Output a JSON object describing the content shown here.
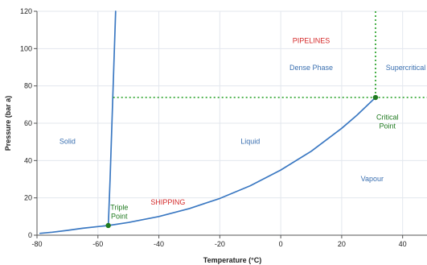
{
  "chart_data": {
    "type": "line",
    "title": "",
    "xlabel": "Temperature (°C)",
    "ylabel": "Pressure (bar a)",
    "xlim": [
      -80,
      48
    ],
    "ylim": [
      0,
      120
    ],
    "x_ticks": [
      -80,
      -60,
      -40,
      -20,
      0,
      20,
      40
    ],
    "y_ticks": [
      0,
      20,
      40,
      60,
      80,
      100,
      120
    ],
    "x_tick_labels": [
      "-80",
      "-60",
      "-40",
      "-20",
      "0",
      "20",
      "40"
    ],
    "y_tick_labels": [
      "0",
      "20",
      "40",
      "60",
      "80",
      "100",
      "120"
    ],
    "grid": true,
    "series": [
      {
        "role": "sublimation-and-vapour-pressure-curve",
        "style": "solid",
        "color": "#3a78c2",
        "points": [
          [
            -79,
            1.0
          ],
          [
            -75,
            1.6
          ],
          [
            -70,
            2.6
          ],
          [
            -65,
            3.7
          ],
          [
            -60,
            4.6
          ],
          [
            -56.6,
            5.2
          ],
          [
            -50,
            6.8
          ],
          [
            -40,
            10.0
          ],
          [
            -30,
            14.3
          ],
          [
            -20,
            19.7
          ],
          [
            -10,
            26.5
          ],
          [
            0,
            34.9
          ],
          [
            10,
            45.0
          ],
          [
            20,
            57.3
          ],
          [
            25,
            64.3
          ],
          [
            31.1,
            73.8
          ]
        ]
      },
      {
        "role": "melting-curve",
        "style": "solid",
        "color": "#3a78c2",
        "points": [
          [
            -56.6,
            5.2
          ],
          [
            -56.0,
            30
          ],
          [
            -55.4,
            60
          ],
          [
            -54.8,
            90
          ],
          [
            -54.2,
            120
          ]
        ]
      },
      {
        "role": "critical-pressure-line",
        "style": "dotted",
        "color": "#1f9e1f",
        "points": [
          [
            -55,
            73.8
          ],
          [
            48,
            73.8
          ]
        ]
      },
      {
        "role": "critical-temperature-line",
        "style": "dotted",
        "color": "#1f9e1f",
        "points": [
          [
            31.1,
            73.8
          ],
          [
            31.1,
            120
          ]
        ]
      }
    ],
    "markers": [
      {
        "name": "triple-point",
        "x": -56.6,
        "y": 5.2,
        "color": "#1f7a1f"
      },
      {
        "name": "critical-point",
        "x": 31.1,
        "y": 73.8,
        "color": "#1f7a1f"
      }
    ],
    "annotations": [
      {
        "name": "label-solid",
        "lines": [
          "Solid"
        ],
        "x": -70,
        "y": 49,
        "color": "#3a6fb0"
      },
      {
        "name": "label-liquid",
        "lines": [
          "Liquid"
        ],
        "x": -10,
        "y": 49,
        "color": "#3a6fb0"
      },
      {
        "name": "label-vapour",
        "lines": [
          "Vapour"
        ],
        "x": 30,
        "y": 29,
        "color": "#3a6fb0"
      },
      {
        "name": "label-dense-phase",
        "lines": [
          "Dense Phase"
        ],
        "x": 10,
        "y": 88.5,
        "color": "#3a6fb0"
      },
      {
        "name": "label-supercritical",
        "lines": [
          "Supercritical"
        ],
        "x": 41,
        "y": 88.5,
        "color": "#3a6fb0"
      },
      {
        "name": "label-pipelines",
        "lines": [
          "PIPELINES"
        ],
        "x": 10,
        "y": 103,
        "color": "#d42a2a"
      },
      {
        "name": "label-shipping",
        "lines": [
          "SHIPPING"
        ],
        "x": -37,
        "y": 16.5,
        "color": "#d42a2a"
      },
      {
        "name": "label-triple-point",
        "lines": [
          "Triple",
          "Point"
        ],
        "x": -53,
        "y": 13.5,
        "color": "#1f7a1f"
      },
      {
        "name": "label-critical-point",
        "lines": [
          "Critical",
          "Point"
        ],
        "x": 35,
        "y": 62,
        "color": "#1f7a1f"
      }
    ]
  }
}
